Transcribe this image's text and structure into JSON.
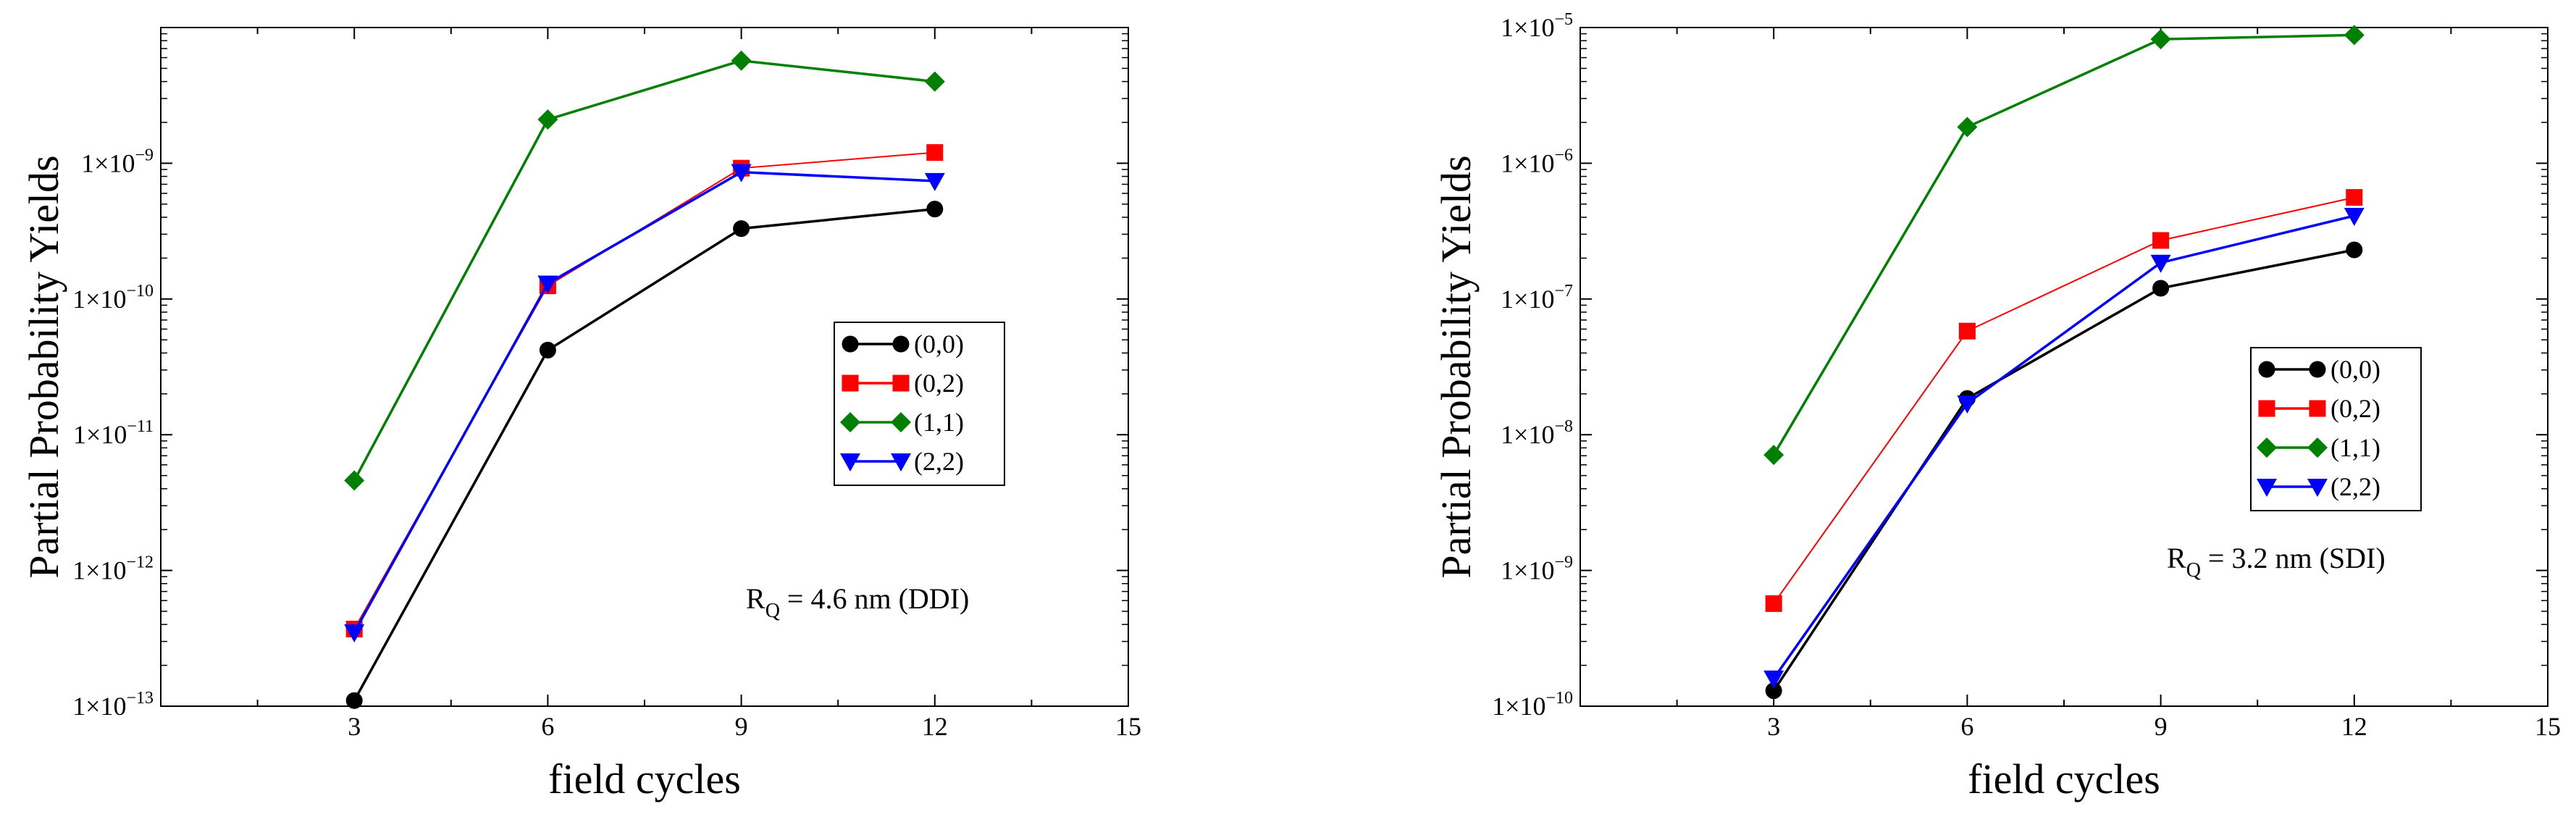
{
  "chart_data": [
    {
      "type": "line",
      "xlabel": "field cycles",
      "ylabel": "Partial Probability Yields",
      "yscale": "log",
      "xlim": [
        0,
        15
      ],
      "ylim": [
        1e-13,
        1e-08
      ],
      "x_ticks": [
        3,
        6,
        9,
        12,
        15
      ],
      "y_tick_exponents": [
        -13,
        -12,
        -11,
        -10,
        -9
      ],
      "y_tick_mantissa": "1×10",
      "legend_position": "center-right",
      "annotation": {
        "main": "R",
        "sub": "Q",
        "rest": " = 4.6 nm (DDI)"
      },
      "x": [
        3,
        6,
        9,
        12
      ],
      "series": [
        {
          "name": "(0,0)",
          "color": "#000000",
          "marker": "circle",
          "values": [
            1.1e-13,
            4.2e-11,
            3.3e-10,
            4.6e-10
          ]
        },
        {
          "name": "(0,2)",
          "color": "#ff0000",
          "marker": "square",
          "values": [
            3.7e-13,
            1.25e-10,
            9.2e-10,
            1.2e-09
          ]
        },
        {
          "name": "(1,1)",
          "color": "#008000",
          "marker": "diamond",
          "values": [
            4.6e-12,
            2.1e-09,
            5.7e-09,
            4e-09
          ]
        },
        {
          "name": "(2,2)",
          "color": "#0000ff",
          "marker": "triangle-down",
          "values": [
            3.5e-13,
            1.3e-10,
            8.6e-10,
            7.4e-10
          ]
        }
      ]
    },
    {
      "type": "line",
      "xlabel": "field cycles",
      "ylabel": "Partial Probability Yields",
      "yscale": "log",
      "xlim": [
        0,
        15
      ],
      "ylim": [
        1e-10,
        1e-05
      ],
      "x_ticks": [
        3,
        6,
        9,
        12,
        15
      ],
      "y_tick_exponents": [
        -10,
        -9,
        -8,
        -7,
        -6,
        -5
      ],
      "y_tick_mantissa": "1×10",
      "legend_position": "center-right",
      "annotation": {
        "main": "R",
        "sub": "Q",
        "rest": " =  3.2 nm  (SDI)"
      },
      "x": [
        3,
        6,
        9,
        12
      ],
      "series": [
        {
          "name": "(0,0)",
          "color": "#000000",
          "marker": "circle",
          "values": [
            1.3e-10,
            1.85e-08,
            1.2e-07,
            2.3e-07
          ]
        },
        {
          "name": "(0,2)",
          "color": "#ff0000",
          "marker": "square",
          "values": [
            5.7e-10,
            5.8e-08,
            2.7e-07,
            5.6e-07
          ]
        },
        {
          "name": "(1,1)",
          "color": "#008000",
          "marker": "diamond",
          "values": [
            7.1e-09,
            1.85e-06,
            8.2e-06,
            8.8e-06
          ]
        },
        {
          "name": "(2,2)",
          "color": "#0000ff",
          "marker": "triangle-down",
          "values": [
            1.6e-10,
            1.7e-08,
            1.85e-07,
            4.1e-07
          ]
        }
      ]
    }
  ]
}
